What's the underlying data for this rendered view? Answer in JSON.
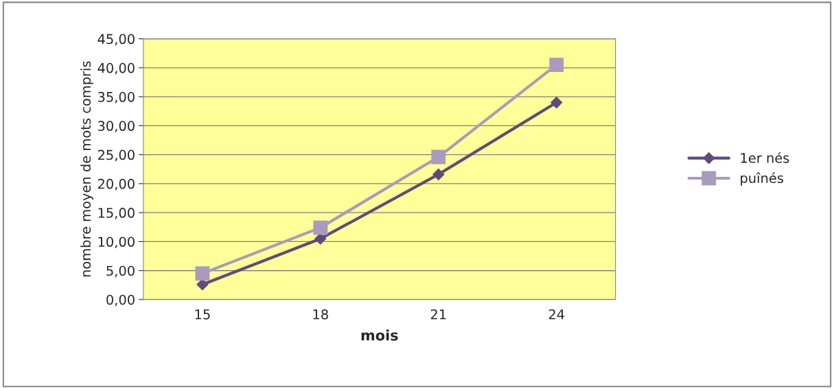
{
  "chart_data": {
    "type": "line",
    "xlabel": "mois",
    "ylabel": "nombre moyen de mots compris",
    "categories": [
      "15",
      "18",
      "21",
      "24"
    ],
    "series": [
      {
        "name": "1er nés",
        "color": "#604a7b",
        "marker": "diamond",
        "values": [
          2.6,
          10.5,
          21.6,
          34.0
        ]
      },
      {
        "name": "puînés",
        "color": "#a99bbd",
        "marker": "square",
        "values": [
          4.5,
          12.4,
          24.6,
          40.5
        ]
      }
    ],
    "ylim": [
      0,
      45
    ],
    "yticks": [
      {
        "value": 0,
        "label": "0,00"
      },
      {
        "value": 5,
        "label": "5,00"
      },
      {
        "value": 10,
        "label": "10,00"
      },
      {
        "value": 15,
        "label": "15,00"
      },
      {
        "value": 20,
        "label": "20,00"
      },
      {
        "value": 25,
        "label": "25,00"
      },
      {
        "value": 30,
        "label": "30,00"
      },
      {
        "value": 35,
        "label": "35,00"
      },
      {
        "value": 40,
        "label": "40,00"
      },
      {
        "value": 45,
        "label": "45,00"
      }
    ],
    "grid": "y",
    "legend": "right",
    "line_style": "solid"
  }
}
